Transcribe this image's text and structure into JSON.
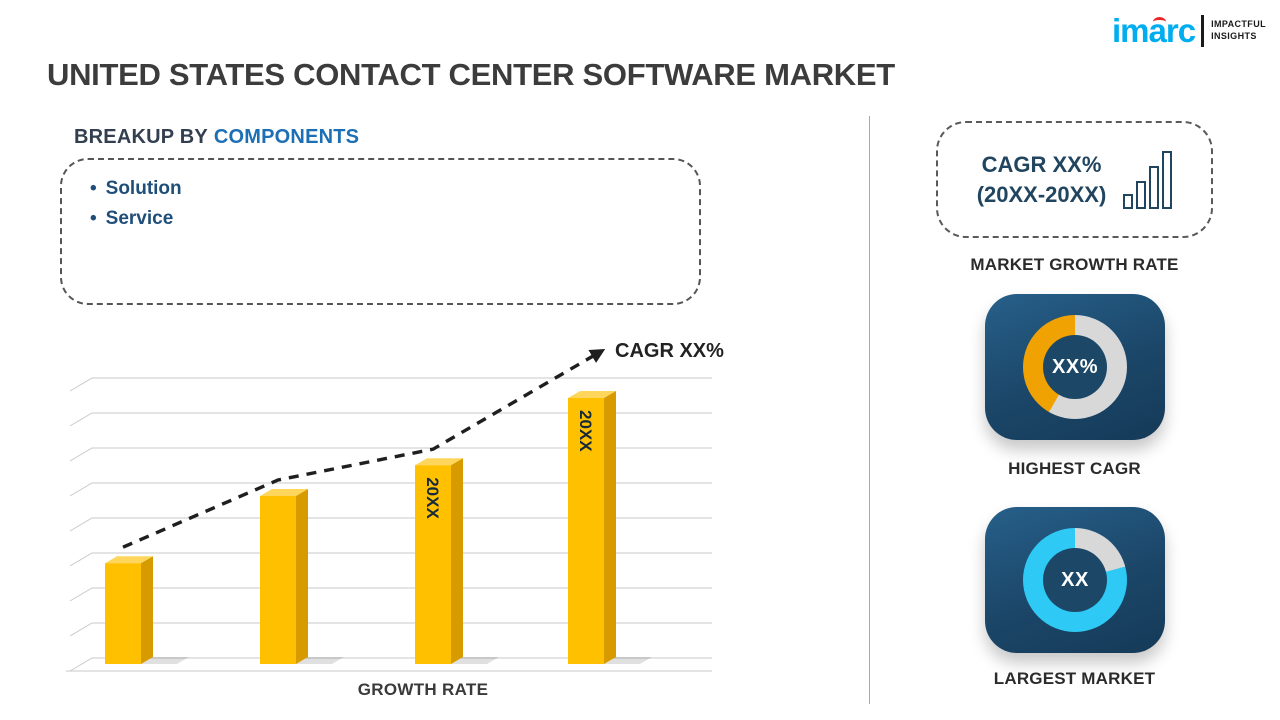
{
  "header": {
    "title": "UNITED STATES CONTACT CENTER SOFTWARE MARKET",
    "logo": {
      "brand": "imarc",
      "tagline1": "IMPACTFUL",
      "tagline2": "INSIGHTS",
      "brand_color": "#00aeef",
      "accent_color": "#e8262a"
    }
  },
  "breakup": {
    "heading_prefix": "BREAKUP BY",
    "heading_highlight": "COMPONENTS",
    "items": [
      "Solution",
      "Service"
    ]
  },
  "chart_data": {
    "type": "bar",
    "title": "Growth Rate schematic bar chart with rising dashed CAGR trend arrow",
    "categories": [
      "",
      "",
      "20XX",
      "20XX"
    ],
    "values": [
      36,
      60,
      71,
      95
    ],
    "ylim": [
      0,
      100
    ],
    "xlabel": "GROWTH RATE",
    "trend_label": "CAGR XX%",
    "bar_color": "#ffc000",
    "bar_side_color": "#d79b00",
    "bar_top_color": "#ffd65c",
    "bar_label_color": "#16293b",
    "grid_color": "#c9c9c9",
    "trend_color": "#1f1f1f",
    "grid": true,
    "legend": "none"
  },
  "sidebar": {
    "growth_box": {
      "line1": "CAGR XX%",
      "line2": "(20XX-20XX)"
    },
    "growth_box_label": "MARKET GROWTH RATE",
    "highest_cagr": {
      "value": "XX%",
      "label": "HIGHEST CAGR",
      "accent": "#f0a202",
      "ring_gray": "#d8d8d8",
      "gray_deg": 210
    },
    "largest_market": {
      "value": "XX",
      "label": "LARGEST MARKET",
      "accent": "#2ec9f5",
      "ring_gray": "#d8d8d8",
      "gray_deg": 75
    }
  }
}
